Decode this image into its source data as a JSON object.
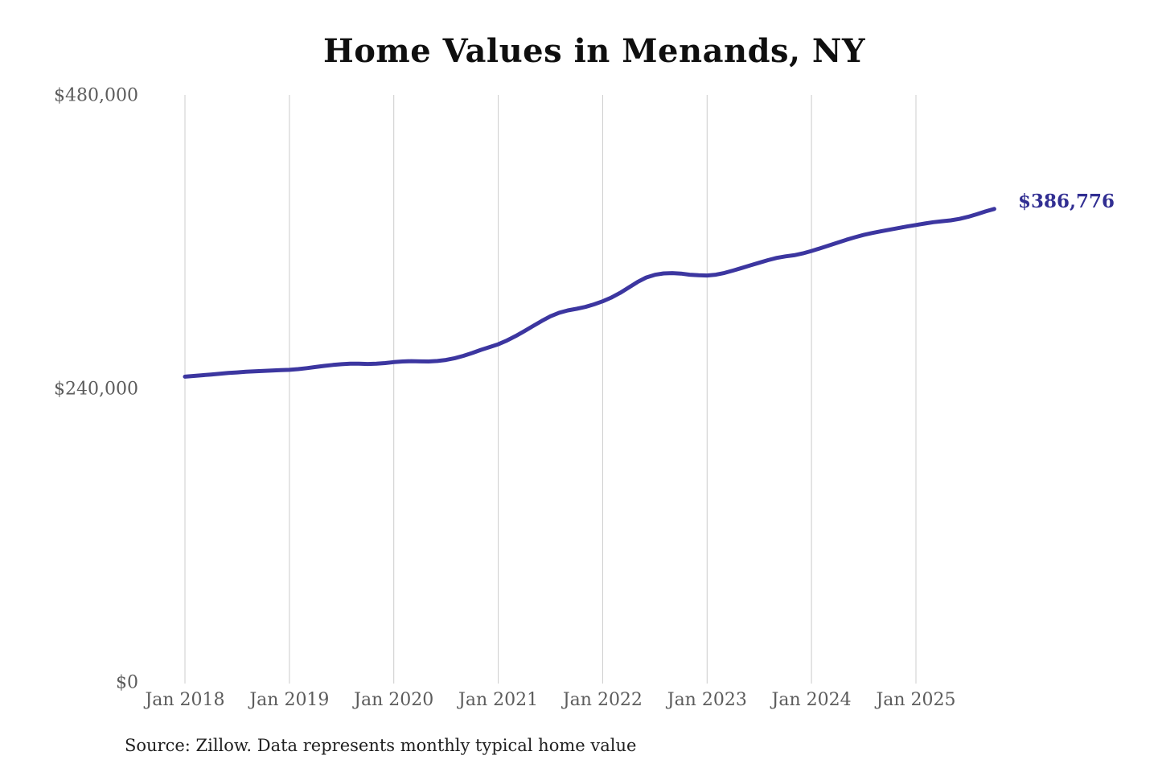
{
  "header": {
    "title": "Home Values in Menands, NY"
  },
  "footer": {
    "source_text": "Source: Zillow. Data represents monthly typical home value"
  },
  "chart_data": {
    "type": "line",
    "title": "Home Values in Menands, NY",
    "series_name": "Monthly typical home value",
    "x_unit": "month",
    "x": [
      "2018-01",
      "2018-02",
      "2018-03",
      "2018-04",
      "2018-05",
      "2018-06",
      "2018-07",
      "2018-08",
      "2018-09",
      "2018-10",
      "2018-11",
      "2018-12",
      "2019-01",
      "2019-02",
      "2019-03",
      "2019-04",
      "2019-05",
      "2019-06",
      "2019-07",
      "2019-08",
      "2019-09",
      "2019-10",
      "2019-11",
      "2019-12",
      "2020-01",
      "2020-02",
      "2020-03",
      "2020-04",
      "2020-05",
      "2020-06",
      "2020-07",
      "2020-08",
      "2020-09",
      "2020-10",
      "2020-11",
      "2020-12",
      "2021-01",
      "2021-02",
      "2021-03",
      "2021-04",
      "2021-05",
      "2021-06",
      "2021-07",
      "2021-08",
      "2021-09",
      "2021-10",
      "2021-11",
      "2021-12",
      "2022-01",
      "2022-02",
      "2022-03",
      "2022-04",
      "2022-05",
      "2022-06",
      "2022-07",
      "2022-08",
      "2022-09",
      "2022-10",
      "2022-11",
      "2022-12",
      "2023-01",
      "2023-02",
      "2023-03",
      "2023-04",
      "2023-05",
      "2023-06",
      "2023-07",
      "2023-08",
      "2023-09",
      "2023-10",
      "2023-11",
      "2023-12",
      "2024-01",
      "2024-02",
      "2024-03",
      "2024-04",
      "2024-05",
      "2024-06",
      "2024-07",
      "2024-08",
      "2024-09",
      "2024-10",
      "2024-11",
      "2024-12",
      "2025-01",
      "2025-02",
      "2025-03",
      "2025-04",
      "2025-05",
      "2025-06",
      "2025-07",
      "2025-08",
      "2025-09",
      "2025-10"
    ],
    "values": [
      249600,
      250200,
      250800,
      251400,
      252000,
      252600,
      253100,
      253600,
      254000,
      254300,
      254600,
      254900,
      255200,
      255800,
      256600,
      257500,
      258400,
      259200,
      259800,
      260200,
      260200,
      260000,
      260200,
      260700,
      261500,
      262000,
      262300,
      262100,
      262000,
      262400,
      263300,
      264700,
      266600,
      268900,
      271500,
      273800,
      276100,
      279200,
      282800,
      286800,
      291000,
      295200,
      299000,
      301900,
      303800,
      305100,
      306600,
      308700,
      311200,
      314300,
      318100,
      322500,
      327000,
      330700,
      332900,
      334000,
      334300,
      333900,
      333000,
      332500,
      332300,
      333000,
      334400,
      336400,
      338500,
      340700,
      342800,
      344900,
      346700,
      348000,
      348900,
      350400,
      352400,
      354600,
      356900,
      359200,
      361500,
      363600,
      365500,
      367100,
      368500,
      369800,
      371100,
      372400,
      373600,
      374800,
      375900,
      376700,
      377400,
      378600,
      380300,
      382400,
      384700,
      386776
    ],
    "ylim": [
      0,
      480000
    ],
    "y_ticks": [
      {
        "label": "$0",
        "value": 0
      },
      {
        "label": "$240,000",
        "value": 240000
      },
      {
        "label": "$480,000",
        "value": 480000
      }
    ],
    "x_ticks": [
      {
        "label": "Jan 2018",
        "index": 0
      },
      {
        "label": "Jan 2019",
        "index": 12
      },
      {
        "label": "Jan 2020",
        "index": 24
      },
      {
        "label": "Jan 2021",
        "index": 36
      },
      {
        "label": "Jan 2022",
        "index": 48
      },
      {
        "label": "Jan 2023",
        "index": 60
      },
      {
        "label": "Jan 2024",
        "index": 72
      },
      {
        "label": "Jan 2025",
        "index": 84
      }
    ],
    "end_label": {
      "text": "$386,776",
      "value": 386776,
      "color": "#312e92"
    },
    "line_color": "#3c36a0",
    "grid_color": "#cccccc",
    "axis_label_color": "#5c5c5c",
    "grid": "vertical-only",
    "legend": "none"
  }
}
